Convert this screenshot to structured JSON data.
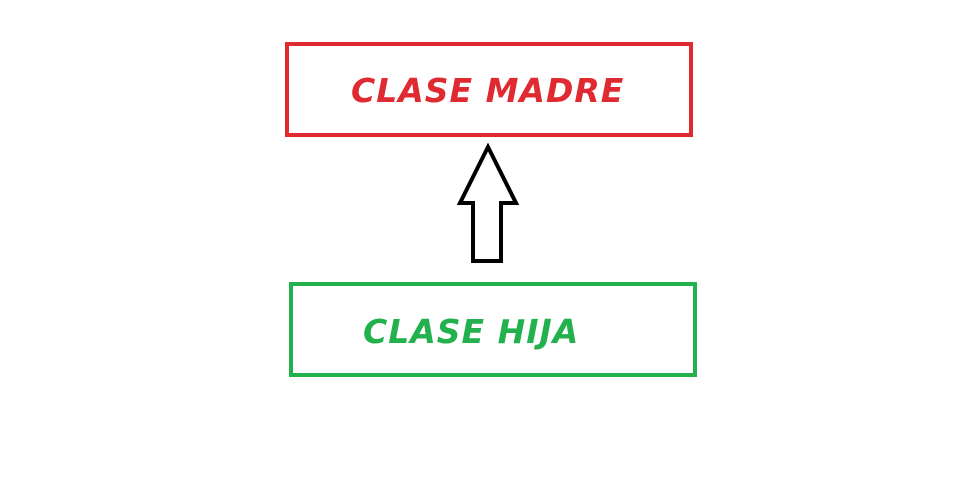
{
  "diagram": {
    "parent": {
      "label": "CLASE MADRE",
      "color": "#e02a31"
    },
    "child": {
      "label": "CLASE HIJA",
      "color": "#22b14c"
    },
    "arrow": {
      "direction": "up",
      "color": "#000000",
      "from": "child",
      "to": "parent"
    }
  }
}
